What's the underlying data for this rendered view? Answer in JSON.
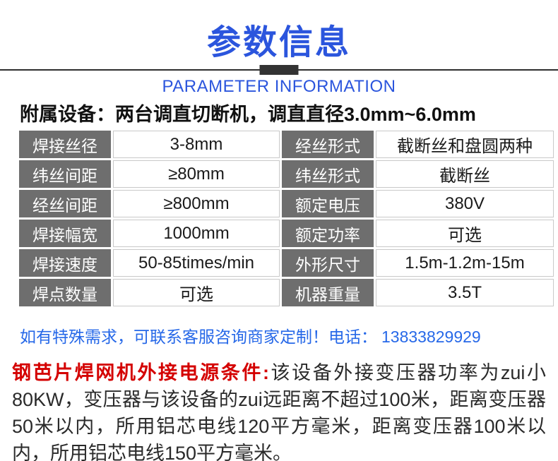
{
  "header": {
    "title": "参数信息",
    "subtitle": "PARAMETER INFORMATION"
  },
  "intro": {
    "text": "附属设备：两台调直切断机，调直直径3.0mm~6.0mm"
  },
  "params_table": {
    "rows": [
      [
        "焊接丝径",
        "3-8mm",
        "经丝形式",
        "截断丝和盘圆两种"
      ],
      [
        "纬丝间距",
        "≥80mm",
        "纬丝形式",
        "截断丝"
      ],
      [
        "经丝间距",
        "≥800mm",
        "额定电压",
        "380V"
      ],
      [
        "焊接幅宽",
        "1000mm",
        "额定功率",
        "可选"
      ],
      [
        "焊接速度",
        "50-85times/min",
        "外形尺寸",
        "1.5m-1.2m-15m"
      ],
      [
        "焊点数量",
        "可选",
        "机器重量",
        "3.5T"
      ]
    ]
  },
  "contact": {
    "text": "如有特殊需求，可联系客服咨询商家定制！电话：",
    "phone": "13833829929"
  },
  "power_note": {
    "label": "钢芭片焊网机外接电源条件:",
    "text": "该设备外接变压器功率为zui小80KW，变压器与该设备的zui远距离不超过100米，距离变压器50米以内，所用铝芯电线120平方毫米，距离变压器100米以内，所用铝芯电线150平方毫米。"
  },
  "colors": {
    "accent_blue": "#2b55dd",
    "contact_blue": "#2668e8",
    "label_gray": "#6e6e6e",
    "alert_red": "#d40000",
    "line_dark": "#333333"
  }
}
